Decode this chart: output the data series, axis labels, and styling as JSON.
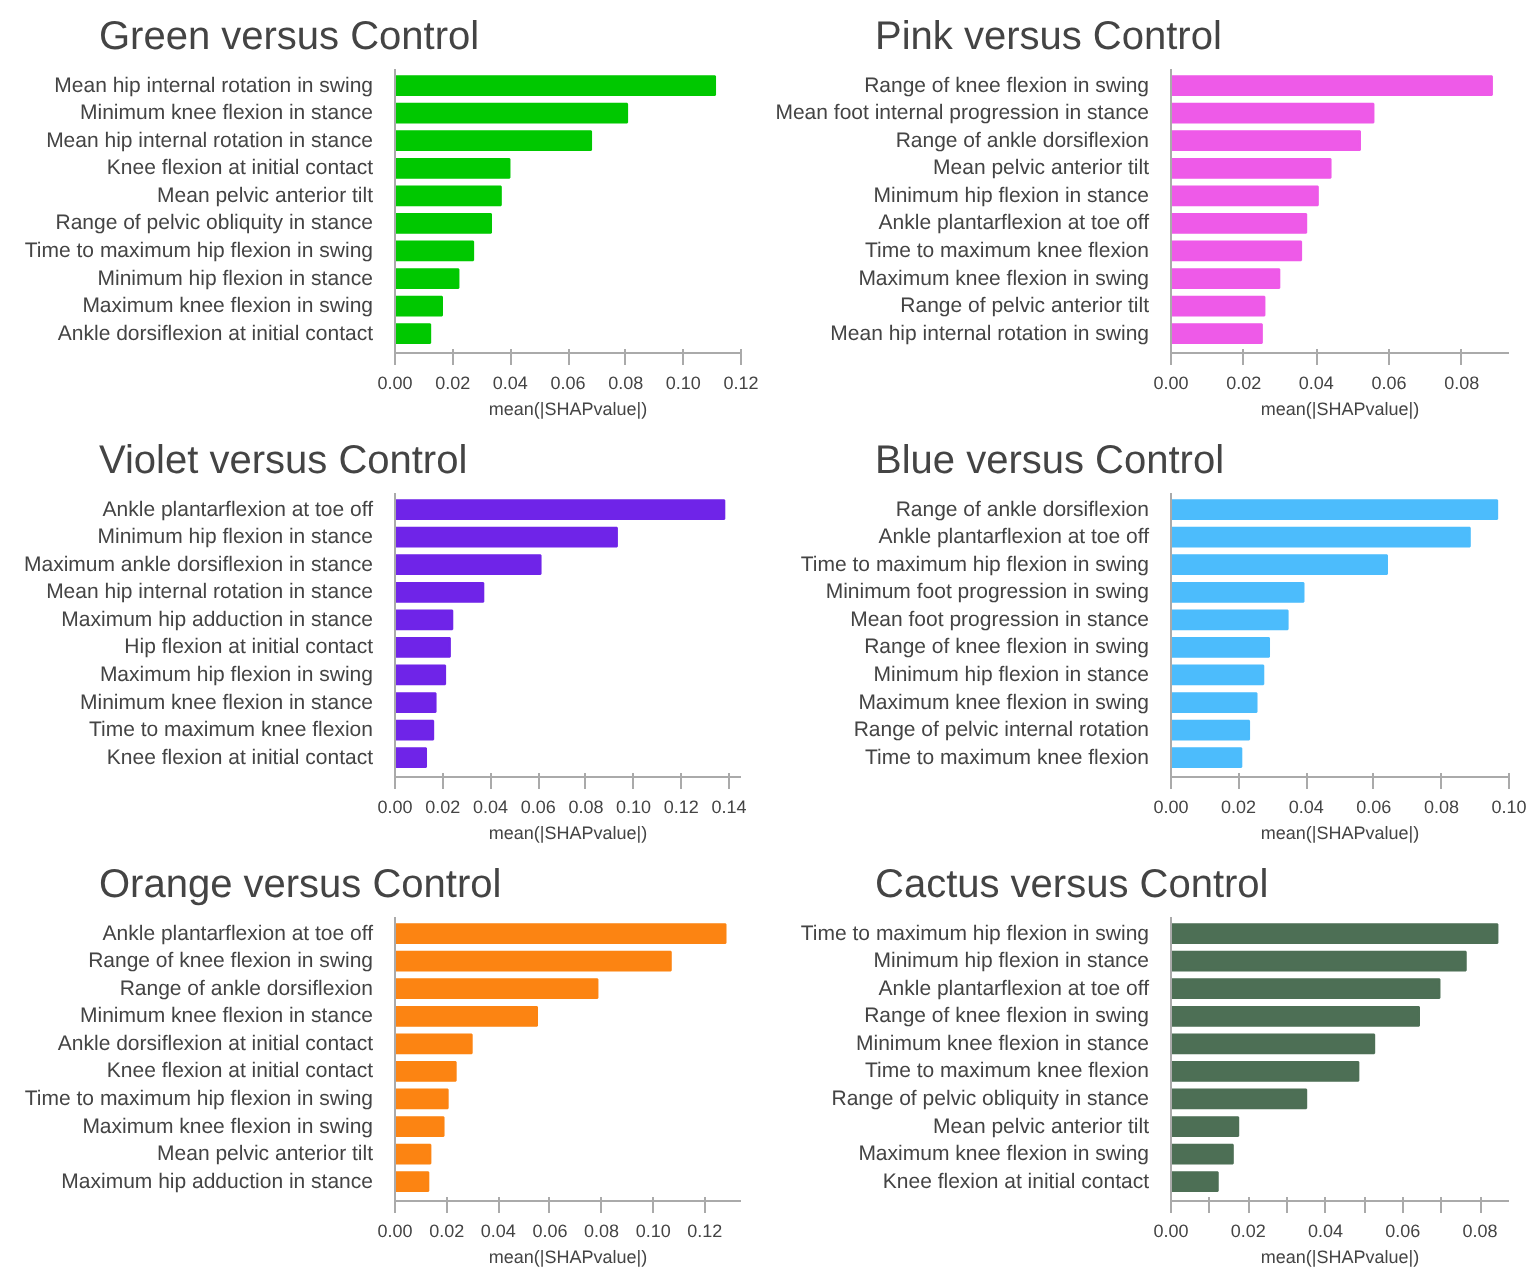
{
  "chart_data": [
    {
      "type": "bar",
      "orientation": "horizontal",
      "title": "Green versus Control",
      "xlabel": "mean(|SHAPvalue|)",
      "color": "#00c800",
      "categories": [
        "Mean hip internal rotation in swing",
        "Minimum knee flexion in stance",
        "Mean hip internal rotation in stance",
        "Knee flexion at initial contact",
        "Mean pelvic anterior tilt",
        "Range of pelvic obliquity in stance",
        "Time to maximum hip flexion in swing",
        "Minimum hip flexion in stance",
        "Maximum knee flexion in swing",
        "Ankle dorsiflexion at initial contact"
      ],
      "values": [
        0.111,
        0.0805,
        0.068,
        0.0397,
        0.0367,
        0.0333,
        0.0271,
        0.022,
        0.0163,
        0.0122
      ],
      "xlim": [
        0,
        0.12
      ],
      "xticks": [
        {
          "value": 0,
          "label": "0.00"
        },
        0.02,
        0.04,
        0.06,
        0.08,
        {
          "value": 0.1,
          "label": "0.10"
        },
        0.12
      ],
      "grid": false
    },
    {
      "type": "bar",
      "orientation": "horizontal",
      "title": "Pink versus Control",
      "xlabel": "mean(|SHAPvalue|)",
      "color": "#ee5ae8",
      "categories": [
        "Range of knee flexion in swing",
        "Mean foot internal progression in stance",
        "Range of ankle dorsiflexion",
        "Mean pelvic anterior tilt",
        "Minimum hip flexion in stance",
        "Ankle plantarflexion at toe off",
        "Time to maximum knee flexion",
        "Maximum knee flexion in swing",
        "Range of pelvic anterior tilt",
        "Mean hip internal rotation in swing"
      ],
      "values": [
        0.0883,
        0.0557,
        0.052,
        0.0439,
        0.0404,
        0.0372,
        0.0358,
        0.0298,
        0.0257,
        0.025
      ],
      "xlim": [
        0,
        0.093
      ],
      "xticks": [
        {
          "value": 0,
          "label": "0.00"
        },
        0.02,
        0.04,
        0.06,
        0.08
      ],
      "grid": false
    },
    {
      "type": "bar",
      "orientation": "horizontal",
      "title": "Violet versus Control",
      "xlabel": "mean(|SHAPvalue|)",
      "color": "#6f24e8",
      "categories": [
        "Ankle plantarflexion at toe off",
        "Minimum hip flexion in stance",
        "Maximum ankle dorsiflexion in stance",
        "Mean hip internal rotation in stance",
        "Maximum hip adduction in stance",
        "Hip flexion at initial contact",
        "Maximum hip flexion in swing",
        "Minimum knee flexion in stance",
        "Time to maximum knee flexion",
        "Knee flexion at initial contact"
      ],
      "values": [
        0.138,
        0.093,
        0.061,
        0.037,
        0.024,
        0.023,
        0.021,
        0.017,
        0.016,
        0.013
      ],
      "xlim": [
        0,
        0.145
      ],
      "xticks": [
        {
          "value": 0,
          "label": "0.00"
        },
        0.02,
        0.04,
        0.06,
        0.08,
        {
          "value": 0.1,
          "label": "0.10"
        },
        0.12,
        0.14
      ],
      "grid": false
    },
    {
      "type": "bar",
      "orientation": "horizontal",
      "title": "Blue versus Control",
      "xlabel": "mean(|SHAPvalue|)",
      "color": "#4cbcfc",
      "categories": [
        "Range of ankle dorsiflexion",
        "Ankle plantarflexion at toe off",
        "Time to maximum hip flexion in swing",
        "Minimum foot progression in swing",
        "Mean foot progression in stance",
        "Range of knee flexion in swing",
        "Minimum hip flexion in stance",
        "Maximum knee flexion in swing",
        "Range of pelvic internal rotation",
        "Time to maximum knee flexion"
      ],
      "values": [
        0.0965,
        0.0884,
        0.0639,
        0.0392,
        0.0345,
        0.029,
        0.0273,
        0.0253,
        0.0231,
        0.0208
      ],
      "xlim": [
        0,
        0.1
      ],
      "xticks": [
        {
          "value": 0,
          "label": "0.00"
        },
        0.02,
        0.04,
        0.06,
        0.08,
        {
          "value": 0.1,
          "label": "0.10"
        }
      ],
      "grid": false
    },
    {
      "type": "bar",
      "orientation": "horizontal",
      "title": "Orange versus Control",
      "xlabel": "mean(|SHAPvalue|)",
      "color": "#fc8412",
      "categories": [
        "Ankle plantarflexion at toe off",
        "Range of knee flexion in swing",
        "Range of ankle dorsiflexion",
        "Minimum knee flexion in stance",
        "Ankle dorsiflexion at initial contact",
        "Knee flexion at initial contact",
        "Time to maximum hip flexion in swing",
        "Maximum knee flexion in swing",
        "Mean pelvic anterior tilt",
        "Maximum hip adduction in stance"
      ],
      "values": [
        0.128,
        0.1068,
        0.0784,
        0.055,
        0.0297,
        0.0235,
        0.0204,
        0.0188,
        0.0137,
        0.0129
      ],
      "xlim": [
        0,
        0.134
      ],
      "xticks": [
        {
          "value": 0,
          "label": "0.00"
        },
        0.02,
        0.04,
        0.06,
        0.08,
        {
          "value": 0.1,
          "label": "0.10"
        },
        0.12
      ],
      "grid": false
    },
    {
      "type": "bar",
      "orientation": "horizontal",
      "title": "Cactus versus Control",
      "xlabel": "mean(|SHAPvalue|)",
      "color": "#4d6f55",
      "categories": [
        "Time to maximum hip flexion in swing",
        "Minimum hip flexion in stance",
        "Ankle plantarflexion at toe off",
        "Range of knee flexion in swing",
        "Minimum knee flexion in stance",
        "Time to maximum knee flexion",
        "Range of pelvic obliquity in stance",
        "Mean pelvic anterior tilt",
        "Maximum knee flexion in swing",
        "Knee flexion at initial contact"
      ],
      "values": [
        0.0845,
        0.0763,
        0.0695,
        0.0642,
        0.0526,
        0.0485,
        0.035,
        0.0174,
        0.016,
        0.0121
      ],
      "xlim": [
        0,
        0.0875
      ],
      "xticks": [
        {
          "value": 0,
          "label": "0.00"
        },
        {
          "value": 0.01,
          "label": null
        },
        0.02,
        {
          "value": 0.03,
          "label": null
        },
        0.04,
        {
          "value": 0.05,
          "label": null
        },
        0.06,
        {
          "value": 0.07,
          "label": null
        },
        0.08
      ],
      "grid": false
    }
  ]
}
